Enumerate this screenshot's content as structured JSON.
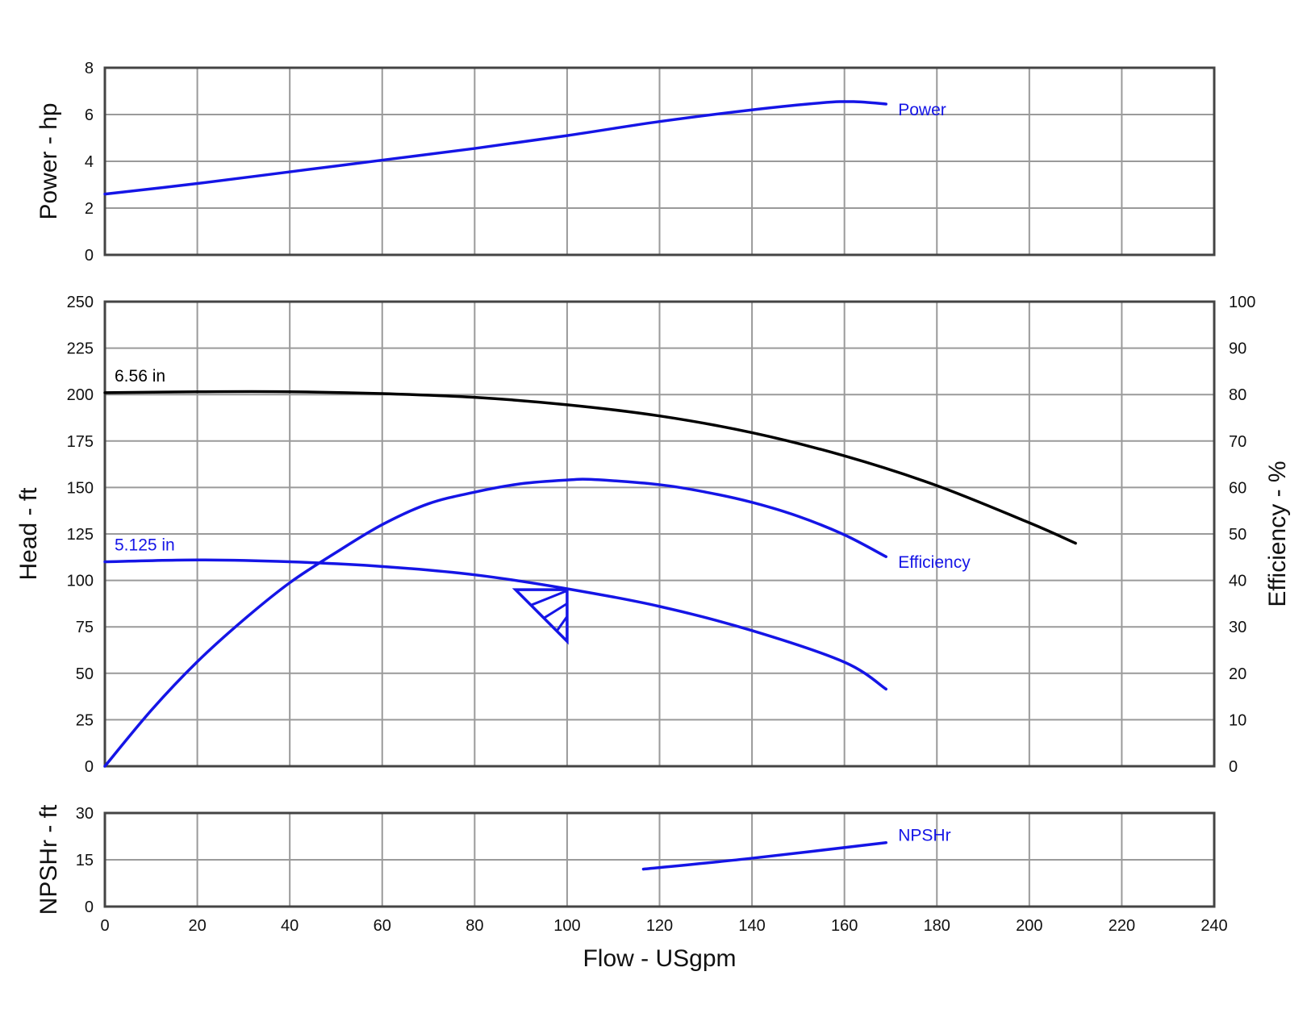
{
  "chart_data": {
    "type": "line",
    "x": {
      "label": "Flow - USgpm",
      "lim": [
        0,
        240
      ],
      "ticks": [
        "0",
        "20",
        "40",
        "60",
        "80",
        "100",
        "120",
        "140",
        "160",
        "180",
        "200",
        "220",
        "240"
      ]
    },
    "grid": true,
    "colors": {
      "blue": "#1515e6",
      "black": "#000000"
    },
    "panels": [
      {
        "id": "power",
        "ylabel": "Power - hp",
        "ylim": [
          0,
          8
        ],
        "yticks": [
          "0",
          "2",
          "4",
          "6",
          "8"
        ],
        "series": [
          {
            "name": "Power",
            "color": "#1515e6",
            "points": [
              [
                0,
                2.6
              ],
              [
                20,
                3.05
              ],
              [
                40,
                3.55
              ],
              [
                60,
                4.05
              ],
              [
                80,
                4.55
              ],
              [
                100,
                5.1
              ],
              [
                120,
                5.7
              ],
              [
                140,
                6.2
              ],
              [
                155,
                6.5
              ],
              [
                162,
                6.55
              ],
              [
                169,
                6.45
              ]
            ]
          }
        ]
      },
      {
        "id": "head",
        "ylabel": "Head - ft",
        "ylim": [
          0,
          250
        ],
        "yticks": [
          "0",
          "25",
          "50",
          "75",
          "100",
          "125",
          "150",
          "175",
          "200",
          "225",
          "250"
        ],
        "y2label": "Efficiency - %",
        "y2lim": [
          0,
          100
        ],
        "y2ticks": [
          "0",
          "10",
          "20",
          "30",
          "40",
          "50",
          "60",
          "70",
          "80",
          "90",
          "100"
        ],
        "series": [
          {
            "name": "6.56 in",
            "color": "#000000",
            "axis": "left",
            "points": [
              [
                0,
                201
              ],
              [
                20,
                201.5
              ],
              [
                40,
                201.5
              ],
              [
                60,
                200.5
              ],
              [
                80,
                198.5
              ],
              [
                100,
                194.5
              ],
              [
                120,
                188.5
              ],
              [
                140,
                179.5
              ],
              [
                160,
                167
              ],
              [
                180,
                151
              ],
              [
                200,
                131
              ],
              [
                210,
                120
              ]
            ]
          },
          {
            "name": "5.125 in",
            "color": "#1515e6",
            "axis": "left",
            "points": [
              [
                0,
                110
              ],
              [
                20,
                111
              ],
              [
                40,
                110
              ],
              [
                60,
                107.5
              ],
              [
                80,
                103
              ],
              [
                100,
                95.5
              ],
              [
                120,
                86
              ],
              [
                140,
                73
              ],
              [
                160,
                56
              ],
              [
                169,
                41.5
              ]
            ]
          },
          {
            "name": "Efficiency",
            "color": "#1515e6",
            "axis": "right",
            "points": [
              [
                0,
                0
              ],
              [
                10,
                12
              ],
              [
                20,
                22.5
              ],
              [
                30,
                31.5
              ],
              [
                40,
                39.5
              ],
              [
                50,
                46
              ],
              [
                60,
                52
              ],
              [
                70,
                56.5
              ],
              [
                80,
                59
              ],
              [
                90,
                60.8
              ],
              [
                100,
                61.6
              ],
              [
                106,
                61.7
              ],
              [
                120,
                60.6
              ],
              [
                130,
                59
              ],
              [
                140,
                56.8
              ],
              [
                150,
                53.8
              ],
              [
                160,
                49.8
              ],
              [
                169,
                45.1
              ]
            ]
          }
        ]
      },
      {
        "id": "npshr",
        "ylabel": "NPSHr - ft",
        "ylim": [
          0,
          30
        ],
        "yticks": [
          "0",
          "15",
          "30"
        ],
        "series": [
          {
            "name": "NPSHr",
            "color": "#1515e6",
            "points": [
              [
                116.5,
                12
              ],
              [
                140,
                15.5
              ],
              [
                169,
                20.5
              ]
            ]
          }
        ]
      }
    ],
    "bep_marker": {
      "color": "#1515e6",
      "flow": 100,
      "head": 95
    }
  }
}
